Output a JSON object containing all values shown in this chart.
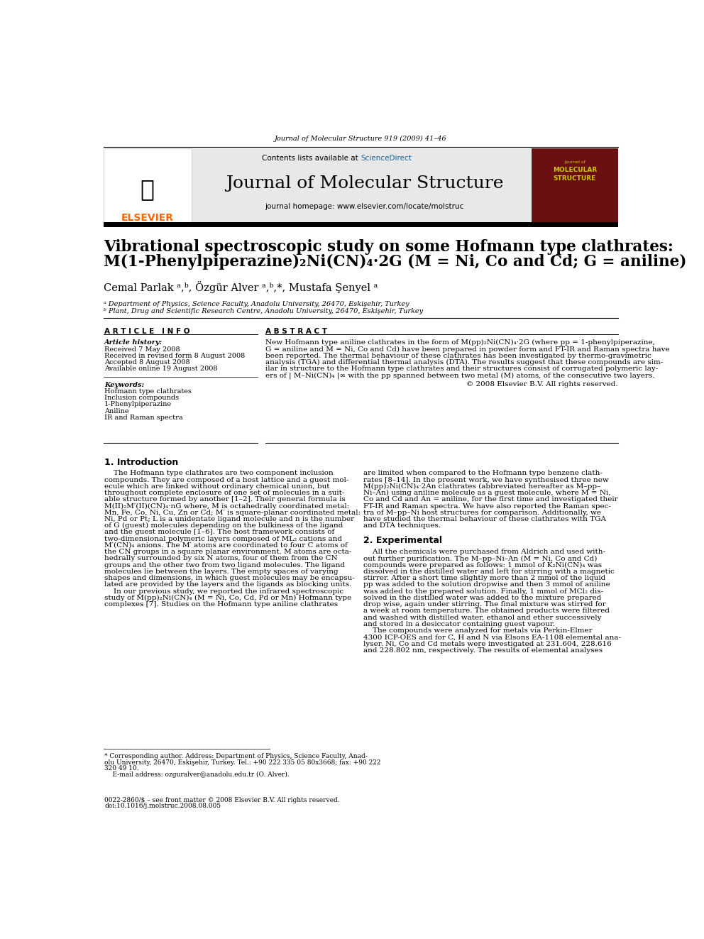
{
  "page_width": 9.92,
  "page_height": 13.23,
  "bg_color": "#ffffff",
  "header_journal_ref": "Journal of Molecular Structure 919 (2009) 41–46",
  "journal_name": "Journal of Molecular Structure",
  "journal_homepage": "journal homepage: www.elsevier.com/locate/molstruc",
  "sciencedirect_color": "#1a6496",
  "elsevier_color": "#ff6600",
  "article_title_line1": "Vibrational spectroscopic study on some Hofmann type clathrates:",
  "article_title_line2": "M(1-Phenylpiperazine)₂Ni(CN)₄·2G (M = Ni, Co and Cd; G = aniline)",
  "authors": "Cemal Parlak ᵃ,ᵇ, Özgür Alver ᵃ,ᵇ,*, Mustafa Şenyel ᵃ",
  "affil_a": "ᵃ Department of Physics, Science Faculty, Anadolu University, 26470, Eskişehir, Turkey",
  "affil_b": "ᵇ Plant, Drug and Scientific Research Centre, Anadolu University, 26470, Eskişehir, Turkey",
  "article_info_header": "A R T I C L E   I N F O",
  "abstract_header": "A B S T R A C T",
  "article_history_label": "Article history:",
  "received": "Received 7 May 2008",
  "received_revised": "Received in revised form 8 August 2008",
  "accepted": "Accepted 8 August 2008",
  "available_online": "Available online 19 August 2008",
  "keywords_label": "Keywords:",
  "keywords": [
    "Hofmann type clathrates",
    "Inclusion compounds",
    "1-Phenylpiperazine",
    "Aniline",
    "IR and Raman spectra"
  ],
  "abstract_copyright": "© 2008 Elsevier B.V. All rights reserved.",
  "section1_title": "1. Introduction",
  "footnote_star": "* Corresponding author. Address: Department of Physics, Science Faculty, Anad-",
  "footnote_star2": "olu University, 26470, Eskişehir, Turkey. Tel.: +90 222 335 05 80x3668; fax: +90 222",
  "footnote_star3": "320 49 10.",
  "footnote_email": "    E-mail address: ozguralver@anadolu.edu.tr (O. Alver).",
  "footer_issn": "0022-2860/$ – see front matter © 2008 Elsevier B.V. All rights reserved.",
  "footer_doi": "doi:10.1016/j.molstruc.2008.08.005",
  "gray_header_bg": "#e8e8e8",
  "abstract_lines": [
    "New Hofmann type aniline clathrates in the form of M(pp)₂Ni(CN)₄·2G (where pp = 1-phenylpiperazine,",
    "G = aniline and M = Ni, Co and Cd) have been prepared in powder form and FT-IR and Raman spectra have",
    "been reported. The thermal behaviour of these clathrates has been investigated by thermo-gravimetric",
    "analysis (TGA) and differential thermal analysis (DTA). The results suggest that these compounds are sim-",
    "ilar in structure to the Hofmann type clathrates and their structures consist of corrugated polymeric lay-",
    "ers of | M–Ni(CN)₄ |∞ with the pp spanned between two metal (M) atoms, of the consecutive two layers."
  ],
  "col1_lines": [
    "    The Hofmann type clathrates are two component inclusion",
    "compounds. They are composed of a host lattice and a guest mol-",
    "ecule which are linked without ordinary chemical union, but",
    "throughout complete enclosure of one set of molecules in a suit-",
    "able structure formed by another [1–2]. Their general formula is",
    "M(II)₂M′(II)(CN)₄·nG where, M is octahedrally coordinated metal:",
    "Mn, Fe, Co, Ni, Cu, Zn or Cd; M′ is square-planar coordinated metal:",
    "Ni, Pd or Pt; L is a unidentate ligand molecule and n is the number",
    "of G (guest) molecules depending on the bulkiness of the ligand",
    "and the guest molecule [1–6]. The host framework consists of",
    "two-dimensional polymeric layers composed of ML₂ cations and",
    "M′(CN)₄ anions. The M′ atoms are coordinated to four C atoms of",
    "the CN groups in a square planar environment. M atoms are octa-",
    "hedrally surrounded by six N atoms, four of them from the CN",
    "groups and the other two from two ligand molecules. The ligand",
    "molecules lie between the layers. The empty spaces of varying",
    "shapes and dimensions, in which guest molecules may be encapsu-",
    "lated are provided by the layers and the ligands as blocking units.",
    "    In our previous study, we reported the infrared spectroscopic",
    "study of M(pp)₂Ni(CN)₄ (M = Ni, Co, Cd, Pd or Mn) Hofmann type",
    "complexes [7]. Studies on the Hofmann type aniline clathrates"
  ],
  "col2_lines": [
    "are limited when compared to the Hofmann type benzene clath-",
    "rates [8–14]. In the present work, we have synthesised three new",
    "M(pp)₂Ni(CN)₄·2An clathrates (abbreviated hereafter as M–pp–",
    "Ni–An) using aniline molecule as a guest molecule, where M = Ni,",
    "Co and Cd and An = aniline, for the first time and investigated their",
    "FT-IR and Raman spectra. We have also reported the Raman spec-",
    "tra of M–pp–Ni host structures for comparison. Additionally, we",
    "have studied the thermal behaviour of these clathrates with TGA",
    "and DTA techniques.",
    "",
    "2. Experimental",
    "",
    "    All the chemicals were purchased from Aldrich and used with-",
    "out further purification. The M–pp–Ni–An (M = Ni, Co and Cd)",
    "compounds were prepared as follows: 1 mmol of K₂Ni(CN)₄ was",
    "dissolved in the distilled water and left for stirring with a magnetic",
    "stirrer. After a short time slightly more than 2 mmol of the liquid",
    "pp was added to the solution dropwise and then 3 mmol of aniline",
    "was added to the prepared solution. Finally, 1 mmol of MCl₂ dis-",
    "solved in the distilled water was added to the mixture prepared",
    "drop wise, again under stirring. The final mixture was stirred for",
    "a week at room temperature. The obtained products were filtered",
    "and washed with distilled water, ethanol and ether successively",
    "and stored in a desiccator containing guest vapour.",
    "    The compounds were analyzed for metals via Perkin-Elmer",
    "4300 ICP-OES and for C, H and N via Elsons EA-1108 elemental ana-",
    "lyser. Ni, Co and Cd metals were investigated at 231.604, 228.616",
    "and 228.802 nm, respectively. The results of elemental analyses"
  ]
}
